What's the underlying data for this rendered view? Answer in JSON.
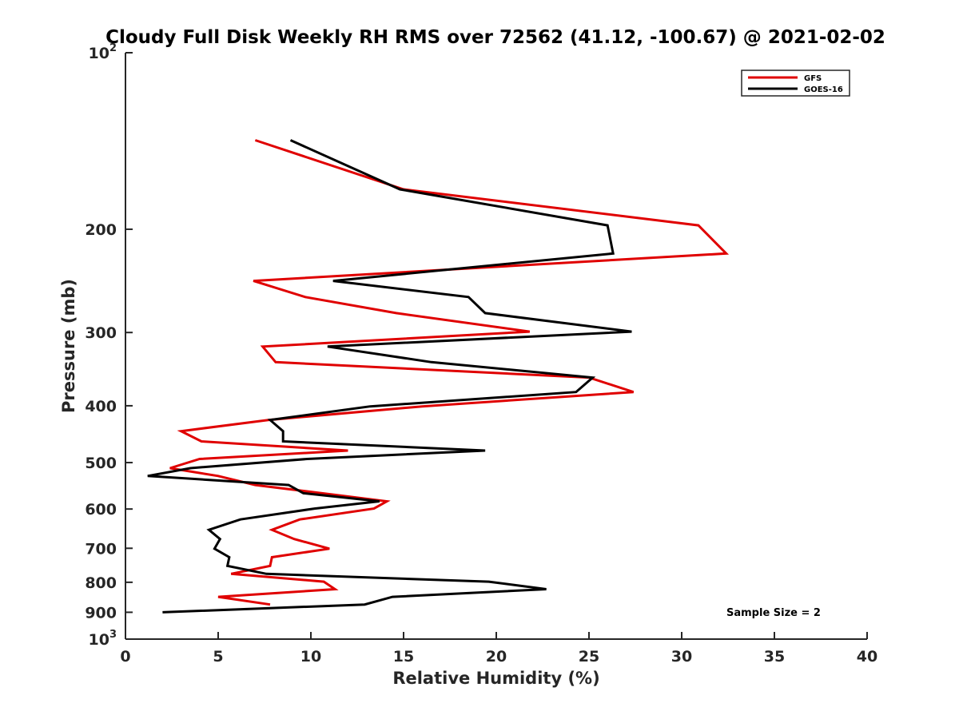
{
  "chart_data": {
    "type": "line",
    "title": "Cloudy Full Disk Weekly RH RMS over 72562 (41.12, -100.67) @ 2021-02-02",
    "xlabel": "Relative Humidity (%)",
    "ylabel": "Pressure (mb)",
    "xlim": [
      0,
      40
    ],
    "ylim": [
      100,
      1000
    ],
    "y_scale": "log",
    "y_reversed": true,
    "grid": false,
    "legend_position": "top-right",
    "x_ticks": [
      0,
      5,
      10,
      15,
      20,
      25,
      30,
      35,
      40
    ],
    "y_ticks": [
      {
        "value": 100,
        "base": "10",
        "exp": "2"
      },
      {
        "value": 200,
        "label": "200"
      },
      {
        "value": 300,
        "label": "300"
      },
      {
        "value": 400,
        "label": "400"
      },
      {
        "value": 500,
        "label": "500"
      },
      {
        "value": 600,
        "label": "600"
      },
      {
        "value": 700,
        "label": "700"
      },
      {
        "value": 800,
        "label": "800"
      },
      {
        "value": 900,
        "label": "900"
      },
      {
        "value": 1000,
        "base": "10",
        "exp": "3"
      }
    ],
    "annotation": "Sample Size = 2",
    "series": [
      {
        "name": "GFS",
        "color": "#e00000",
        "points": [
          [
            7.0,
            141
          ],
          [
            15.0,
            171
          ],
          [
            30.9,
            197
          ],
          [
            32.4,
            220
          ],
          [
            6.9,
            245
          ],
          [
            9.7,
            261
          ],
          [
            14.6,
            278
          ],
          [
            21.8,
            299
          ],
          [
            7.4,
            317
          ],
          [
            8.1,
            337
          ],
          [
            25.0,
            358
          ],
          [
            27.4,
            379
          ],
          [
            16.0,
            401
          ],
          [
            7.7,
            423
          ],
          [
            3.0,
            442
          ],
          [
            4.1,
            460
          ],
          [
            12.0,
            477
          ],
          [
            4.0,
            493
          ],
          [
            2.4,
            511
          ],
          [
            5.0,
            527
          ],
          [
            7.0,
            546
          ],
          [
            10.6,
            564
          ],
          [
            14.1,
            582
          ],
          [
            13.4,
            599
          ],
          [
            9.4,
            625
          ],
          [
            7.9,
            651
          ],
          [
            9.1,
            675
          ],
          [
            11.0,
            701
          ],
          [
            7.9,
            725
          ],
          [
            7.8,
            750
          ],
          [
            5.7,
            774
          ],
          [
            10.7,
            798
          ],
          [
            11.3,
            822
          ],
          [
            5.0,
            847
          ],
          [
            7.8,
            873
          ]
        ]
      },
      {
        "name": "GOES-16",
        "color": "#000000",
        "points": [
          [
            8.9,
            141
          ],
          [
            14.8,
            171
          ],
          [
            26.0,
            197
          ],
          [
            26.3,
            220
          ],
          [
            11.2,
            245
          ],
          [
            18.5,
            261
          ],
          [
            19.4,
            278
          ],
          [
            27.3,
            299
          ],
          [
            10.9,
            317
          ],
          [
            16.5,
            337
          ],
          [
            25.2,
            358
          ],
          [
            24.3,
            379
          ],
          [
            13.2,
            401
          ],
          [
            7.8,
            423
          ],
          [
            8.5,
            442
          ],
          [
            8.5,
            460
          ],
          [
            19.4,
            477
          ],
          [
            9.8,
            493
          ],
          [
            3.5,
            511
          ],
          [
            1.2,
            527
          ],
          [
            8.8,
            546
          ],
          [
            9.6,
            564
          ],
          [
            13.7,
            582
          ],
          [
            10.2,
            599
          ],
          [
            6.2,
            625
          ],
          [
            4.5,
            651
          ],
          [
            5.1,
            675
          ],
          [
            4.8,
            701
          ],
          [
            5.6,
            725
          ],
          [
            5.5,
            750
          ],
          [
            7.6,
            774
          ],
          [
            19.6,
            798
          ],
          [
            22.7,
            822
          ],
          [
            14.4,
            847
          ],
          [
            12.9,
            873
          ],
          [
            2.0,
            900
          ]
        ]
      }
    ]
  }
}
